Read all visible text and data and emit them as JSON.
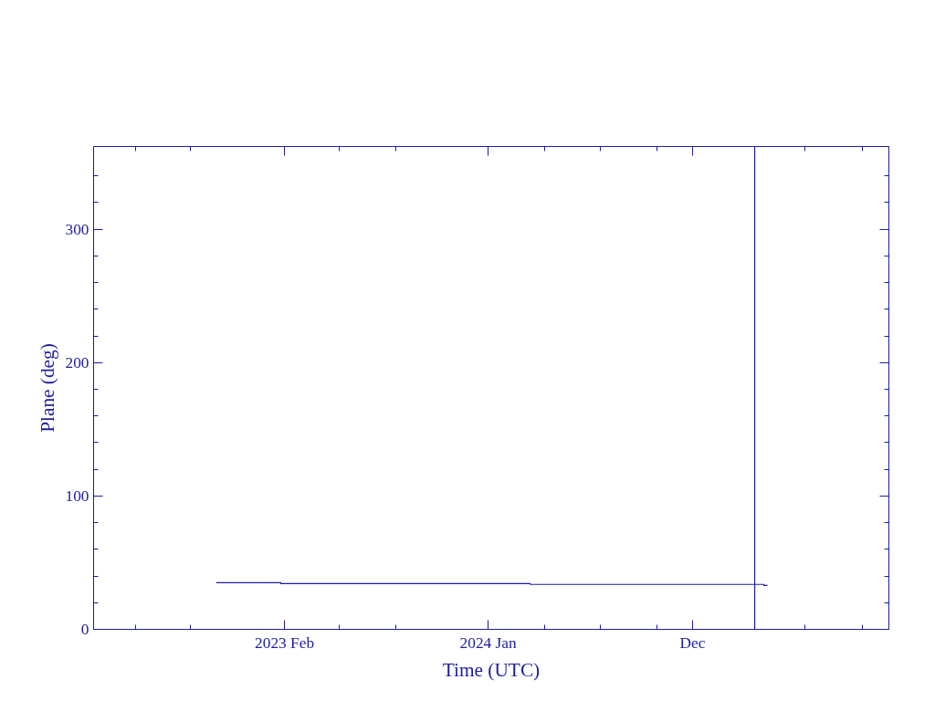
{
  "chart_data": {
    "type": "step",
    "xlabel": "Time (UTC)",
    "ylabel": "Plane (deg)",
    "x": [
      "2022-10-12",
      "2023-01-26",
      "2024-03-10",
      "2025-03-28",
      "2025-04-03"
    ],
    "series": [
      {
        "color": "#1c1ca0",
        "values": [
          35.0,
          34.3,
          33.7,
          33.0,
          33.0
        ]
      }
    ],
    "xlim": [
      "2022-03-25",
      "2025-10-19"
    ],
    "xticks": [
      {
        "value": "2022-06-02",
        "label": null
      },
      {
        "value": "2022-08-31",
        "label": null
      },
      {
        "value": "2023-02-01",
        "label": "2023 Feb"
      },
      {
        "value": "2023-05-02",
        "label": null
      },
      {
        "value": "2023-08-03",
        "label": null
      },
      {
        "value": "2024-01-01",
        "label": "2024 Jan"
      },
      {
        "value": "2024-04-03",
        "label": null
      },
      {
        "value": "2024-07-03",
        "label": null
      },
      {
        "value": "2024-10-03",
        "label": null
      },
      {
        "value": "2024-12-01",
        "label": "Dec"
      },
      {
        "value": "2025-06-04",
        "label": null
      },
      {
        "value": "2025-09-05",
        "label": null
      }
    ],
    "ylim": [
      0,
      362
    ],
    "yticks": [
      0,
      {
        "value": 20,
        "label": null
      },
      {
        "value": 40,
        "label": null
      },
      {
        "value": 60,
        "label": null
      },
      {
        "value": 80,
        "label": null
      },
      100,
      {
        "value": 120,
        "label": null
      },
      {
        "value": 140,
        "label": null
      },
      {
        "value": 160,
        "label": null
      },
      {
        "value": 180,
        "label": null
      },
      200,
      {
        "value": 220,
        "label": null
      },
      {
        "value": 240,
        "label": null
      },
      {
        "value": 260,
        "label": null
      },
      {
        "value": 280,
        "label": null
      },
      300,
      {
        "value": 320,
        "label": null
      },
      {
        "value": 340,
        "label": null
      }
    ],
    "ref_lines": [
      {
        "axis": "x",
        "value": "2025-03-13",
        "color": "#1c1ca0"
      }
    ]
  }
}
